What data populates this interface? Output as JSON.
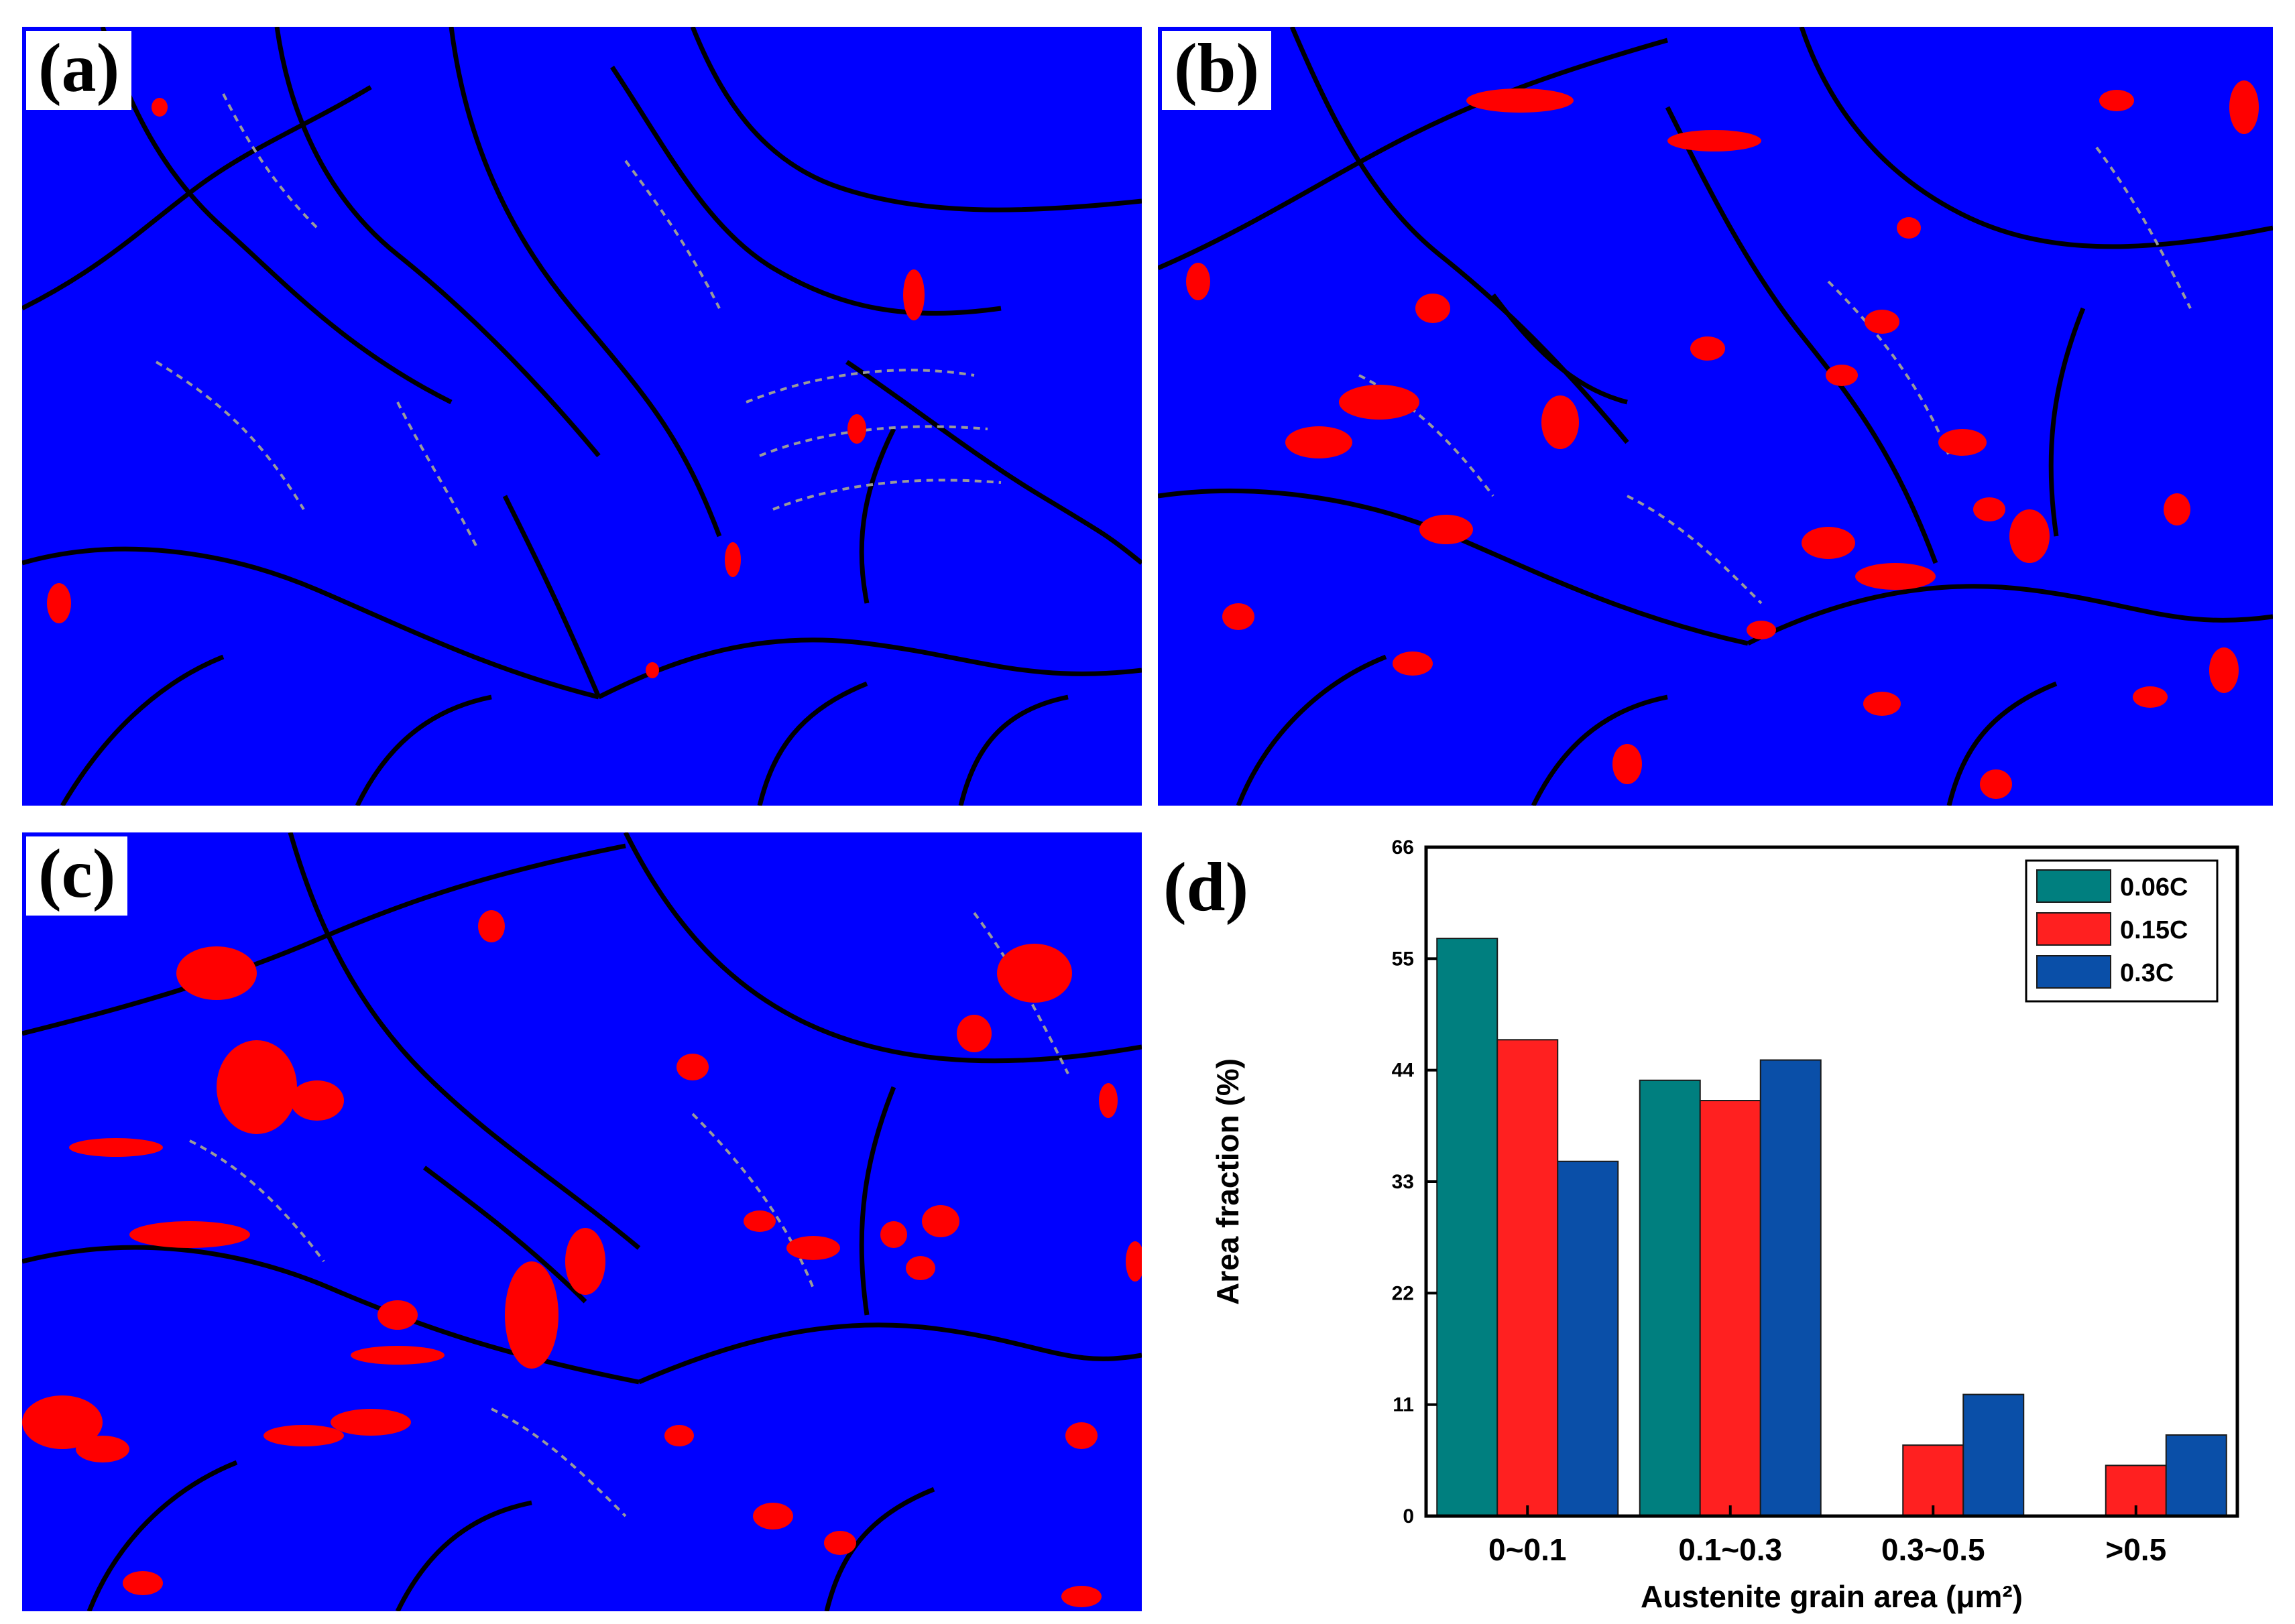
{
  "panels": {
    "a": {
      "label": "(a)"
    },
    "b": {
      "label": "(b)"
    },
    "c": {
      "label": "(c)"
    },
    "d": {
      "label": "(d)"
    }
  },
  "colors": {
    "matrix": "#0000ff",
    "austenite": "#ff0000",
    "boundary": "#000000",
    "low_angle_boundary": "#9a9a9a"
  },
  "chart_data": {
    "type": "bar",
    "xlabel": "Austenite grain area (μm²)",
    "ylabel": "Area fraction (%)",
    "categories": [
      "0~0.1",
      "0.1~0.3",
      "0.3~0.5",
      ">0.5"
    ],
    "ylim": [
      0,
      66
    ],
    "yticks": [
      0,
      11,
      22,
      33,
      44,
      55,
      66
    ],
    "legend_position": "top-right",
    "series": [
      {
        "name": "0.06C",
        "color": "#007f7f",
        "values": [
          57,
          43,
          0,
          0
        ]
      },
      {
        "name": "0.15C",
        "color": "#ff2020",
        "values": [
          47,
          41,
          7,
          5
        ]
      },
      {
        "name": "0.3C",
        "color": "#0a4fa8",
        "values": [
          35,
          45,
          12,
          8
        ]
      }
    ]
  }
}
